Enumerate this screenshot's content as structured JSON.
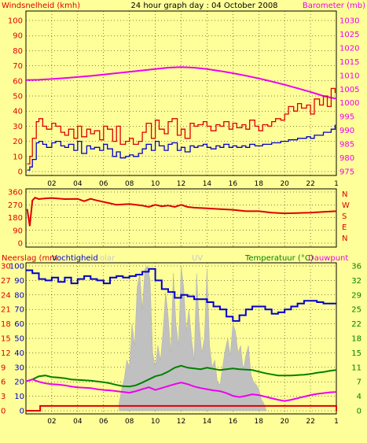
{
  "chart_data": [
    {
      "type": "line",
      "title": "24 hour graph day : 04 October 2008",
      "ylabel": "Windsnelheid (kmh)",
      "ylabel_right": "Barometer (mb)",
      "ylim": [
        0,
        100
      ],
      "ylim_right": [
        975,
        1030
      ],
      "yticks": [
        "0",
        "10",
        "20",
        "30",
        "40",
        "50",
        "60",
        "70",
        "80",
        "90",
        "100"
      ],
      "yticks_right": [
        "975",
        "980",
        "985",
        "990",
        "995",
        "1000",
        "1005",
        "1010",
        "1015",
        "1020",
        "1025",
        "1030"
      ],
      "xlim": [
        0,
        24
      ],
      "xticks": [
        "02",
        "04",
        "06",
        "08",
        "10",
        "12",
        "14",
        "16",
        "18",
        "20",
        "22",
        "1"
      ],
      "grid": true,
      "colors": {
        "gust": "#dd0000",
        "wind": "#0000cc",
        "barometer": "#ee00ee"
      },
      "series": [
        {
          "key": "gust",
          "axis": "left",
          "x": [
            0.1,
            0.3,
            0.5,
            0.8,
            1.0,
            1.3,
            1.6,
            2.0,
            2.3,
            2.7,
            3.0,
            3.3,
            3.7,
            4.0,
            4.3,
            4.7,
            5.0,
            5.3,
            5.7,
            6.0,
            6.3,
            6.7,
            7.0,
            7.3,
            7.7,
            8.0,
            8.3,
            8.7,
            9.0,
            9.3,
            9.7,
            10.0,
            10.3,
            10.7,
            11.0,
            11.3,
            11.7,
            12.0,
            12.3,
            12.7,
            13.0,
            13.3,
            13.7,
            14.0,
            14.3,
            14.7,
            15.0,
            15.3,
            15.7,
            16.0,
            16.3,
            16.7,
            17.0,
            17.3,
            17.7,
            18.0,
            18.3,
            18.7,
            19.0,
            19.3,
            19.7,
            20.0,
            20.3,
            20.7,
            21.0,
            21.3,
            21.7,
            22.0,
            22.3,
            22.7,
            23.0,
            23.3,
            23.6,
            23.9
          ],
          "y": [
            5,
            10,
            22,
            33,
            35,
            30,
            28,
            32,
            30,
            26,
            24,
            28,
            22,
            30,
            23,
            28,
            25,
            27,
            21,
            30,
            28,
            20,
            30,
            18,
            20,
            22,
            18,
            20,
            26,
            32,
            22,
            34,
            28,
            25,
            33,
            35,
            24,
            28,
            22,
            32,
            30,
            31,
            33,
            30,
            27,
            31,
            30,
            33,
            28,
            32,
            29,
            31,
            28,
            34,
            30,
            27,
            31,
            30,
            33,
            35,
            34,
            38,
            43,
            40,
            45,
            42,
            44,
            38,
            48,
            44,
            50,
            43,
            55,
            52
          ]
        },
        {
          "key": "wind",
          "axis": "left",
          "x": [
            0.1,
            0.3,
            0.5,
            0.8,
            1.0,
            1.3,
            1.6,
            2.0,
            2.3,
            2.7,
            3.0,
            3.3,
            3.7,
            4.0,
            4.3,
            4.7,
            5.0,
            5.3,
            5.7,
            6.0,
            6.3,
            6.7,
            7.0,
            7.3,
            7.7,
            8.0,
            8.3,
            8.7,
            9.0,
            9.3,
            9.7,
            10.0,
            10.3,
            10.7,
            11.0,
            11.3,
            11.7,
            12.0,
            12.3,
            12.7,
            13.0,
            13.3,
            13.7,
            14.0,
            14.3,
            14.7,
            15.0,
            15.3,
            15.7,
            16.0,
            16.3,
            16.7,
            17.0,
            17.3,
            17.7,
            18.0,
            18.3,
            18.7,
            19.0,
            19.3,
            19.7,
            20.0,
            20.3,
            20.7,
            21.0,
            21.3,
            21.7,
            22.0,
            22.3,
            22.7,
            23.0,
            23.3,
            23.6,
            23.9
          ],
          "y": [
            1,
            3,
            8,
            19,
            20,
            18,
            16,
            19,
            20,
            17,
            16,
            18,
            14,
            20,
            12,
            17,
            15,
            16,
            14,
            18,
            15,
            10,
            13,
            9,
            10,
            11,
            10,
            12,
            15,
            18,
            14,
            20,
            17,
            14,
            18,
            19,
            14,
            16,
            13,
            17,
            16,
            17,
            18,
            16,
            15,
            17,
            16,
            18,
            16,
            17,
            16,
            17,
            16,
            18,
            17,
            17,
            18,
            18,
            19,
            19,
            20,
            20,
            21,
            21,
            22,
            22,
            23,
            22,
            24,
            24,
            26,
            26,
            28,
            31
          ]
        },
        {
          "key": "barometer",
          "axis": "right",
          "x": [
            0,
            1,
            2,
            3,
            4,
            5,
            6,
            7,
            8,
            9,
            10,
            11,
            12,
            13,
            14,
            15,
            16,
            17,
            18,
            19,
            20,
            21,
            22,
            23,
            24
          ],
          "y": [
            1008.3,
            1008.4,
            1008.7,
            1009.0,
            1009.4,
            1009.8,
            1010.3,
            1010.8,
            1011.3,
            1011.8,
            1012.3,
            1012.8,
            1013.0,
            1012.8,
            1012.3,
            1011.6,
            1010.8,
            1009.9,
            1008.9,
            1007.8,
            1006.6,
            1005.3,
            1004.0,
            1002.5,
            1001.5
          ]
        }
      ]
    },
    {
      "type": "line",
      "ylim": [
        0,
        360
      ],
      "yticks": [
        "0",
        "90",
        "180",
        "270",
        "360"
      ],
      "yticks_right": [
        "N",
        "W",
        "S",
        "E",
        "N"
      ],
      "xlim": [
        0,
        24
      ],
      "grid": true,
      "colors": {
        "direction": "#dd0000"
      },
      "series": [
        {
          "key": "direction",
          "x": [
            0.1,
            0.3,
            0.5,
            0.7,
            1.0,
            1.5,
            2.0,
            3.0,
            4.0,
            4.5,
            5.0,
            5.5,
            6.0,
            6.5,
            7.0,
            8.0,
            9.0,
            9.5,
            10.0,
            10.5,
            11.0,
            11.5,
            12.0,
            12.5,
            13.0,
            14.0,
            15.0,
            16.0,
            17.0,
            18.0,
            19.0,
            20.0,
            21.0,
            22.0,
            23.0,
            24.0
          ],
          "y": [
            240,
            120,
            300,
            320,
            310,
            315,
            318,
            310,
            312,
            295,
            312,
            300,
            290,
            280,
            270,
            275,
            265,
            255,
            270,
            260,
            265,
            255,
            270,
            255,
            250,
            245,
            240,
            235,
            225,
            225,
            215,
            210,
            212,
            215,
            220,
            225
          ]
        }
      ]
    },
    {
      "type": "line",
      "ylabel": "Neerslag (mm",
      "ylabel2": "Vochtigheid",
      "ylabel_ghost": "olar",
      "uv_label": "UV",
      "ylabel_right": "Temperatuur (°C)",
      "ylabel_right2": "Dauwpunt",
      "ylim": [
        0,
        100
      ],
      "ylim_right": [
        -1,
        36
      ],
      "yticks_rain": [
        "0",
        "3",
        "6",
        "9",
        "12",
        "15",
        "18",
        "21",
        "24",
        "27",
        "30"
      ],
      "yticks_hum": [
        "0",
        "10",
        "20",
        "30",
        "40",
        "50",
        "60",
        "70",
        "80",
        "90",
        "100"
      ],
      "yticks_right": [
        "0",
        "4",
        "7",
        "11",
        "15",
        "18",
        "22",
        "25",
        "29",
        "32",
        "36"
      ],
      "xlim": [
        0,
        24
      ],
      "xticks": [
        "02",
        "04",
        "06",
        "08",
        "10",
        "12",
        "14",
        "16",
        "18",
        "20",
        "22",
        "1"
      ],
      "grid": true,
      "colors": {
        "humidity": "#0000cc",
        "temperature": "#008000",
        "dewpoint": "#ee00ee",
        "rain": "#dd0000",
        "solar": "#c0c0c0"
      },
      "series": [
        {
          "key": "humidity",
          "axis": "hum",
          "x": [
            0,
            0.5,
            1.0,
            1.5,
            2.0,
            2.5,
            3.0,
            3.5,
            4.0,
            4.5,
            5.0,
            5.5,
            6.0,
            6.5,
            7.0,
            7.5,
            8.0,
            8.5,
            9.0,
            9.5,
            10.0,
            10.5,
            11.0,
            11.5,
            12.0,
            12.5,
            13.0,
            13.5,
            14.0,
            14.5,
            15.0,
            15.5,
            16.0,
            16.5,
            17.0,
            17.5,
            18.0,
            18.5,
            19.0,
            19.5,
            20.0,
            20.5,
            21.0,
            21.5,
            22.0,
            22.5,
            23.0,
            23.5,
            24.0
          ],
          "y": [
            97,
            95,
            91,
            90,
            92,
            89,
            92,
            88,
            91,
            93,
            91,
            90,
            88,
            92,
            93,
            92,
            93,
            94,
            96,
            98,
            90,
            84,
            82,
            78,
            80,
            79,
            77,
            77,
            75,
            72,
            70,
            65,
            62,
            66,
            70,
            72,
            72,
            70,
            67,
            68,
            70,
            72,
            74,
            76,
            76,
            75,
            74,
            74,
            74
          ]
        },
        {
          "key": "temperature",
          "axis": "right",
          "x": [
            0,
            0.5,
            1.0,
            1.5,
            2.0,
            2.5,
            3.0,
            3.5,
            4.0,
            4.5,
            5.0,
            5.5,
            6.0,
            6.5,
            7.0,
            7.5,
            8.0,
            8.5,
            9.0,
            9.5,
            10.0,
            10.5,
            11.0,
            11.5,
            12.0,
            12.5,
            13.0,
            13.5,
            14.0,
            14.5,
            15.0,
            15.5,
            16.0,
            16.5,
            17.0,
            17.5,
            18.0,
            18.5,
            19.0,
            19.5,
            20.0,
            20.5,
            21.0,
            21.5,
            22.0,
            22.5,
            23.0,
            23.5,
            24.0
          ],
          "y": [
            6.5,
            7.0,
            7.8,
            8.0,
            7.6,
            7.5,
            7.3,
            7.0,
            6.9,
            6.8,
            6.7,
            6.5,
            6.3,
            6.0,
            5.6,
            5.3,
            5.2,
            5.5,
            6.2,
            7.0,
            7.8,
            8.2,
            9.0,
            10.0,
            10.5,
            10.0,
            9.8,
            9.6,
            10.0,
            9.7,
            9.4,
            9.6,
            9.8,
            9.6,
            9.5,
            9.4,
            9.0,
            8.6,
            8.3,
            8.0,
            8.0,
            8.0,
            8.1,
            8.2,
            8.4,
            8.7,
            8.9,
            9.2,
            9.4
          ]
        },
        {
          "key": "dewpoint",
          "axis": "right",
          "x": [
            0,
            0.5,
            1.0,
            1.5,
            2.0,
            2.5,
            3.0,
            3.5,
            4.0,
            4.5,
            5.0,
            5.5,
            6.0,
            6.5,
            7.0,
            7.5,
            8.0,
            8.5,
            9.0,
            9.5,
            10.0,
            10.5,
            11.0,
            11.5,
            12.0,
            12.5,
            13.0,
            13.5,
            14.0,
            14.5,
            15.0,
            15.5,
            16.0,
            16.5,
            17.0,
            17.5,
            18.0,
            18.5,
            19.0,
            19.5,
            20.0,
            20.5,
            21.0,
            21.5,
            22.0,
            22.5,
            23.0,
            23.5,
            24.0
          ],
          "y": [
            6.5,
            7.0,
            6.4,
            6.0,
            5.8,
            5.7,
            5.5,
            5.2,
            5.0,
            4.9,
            4.8,
            4.5,
            4.3,
            4.2,
            4.0,
            3.8,
            3.6,
            4.0,
            4.5,
            5.0,
            4.3,
            4.8,
            5.3,
            5.8,
            6.2,
            5.8,
            5.2,
            4.8,
            4.5,
            4.2,
            4.0,
            3.5,
            2.8,
            2.5,
            2.8,
            3.2,
            3.0,
            2.6,
            2.2,
            1.8,
            1.5,
            1.8,
            2.2,
            2.6,
            3.0,
            3.3,
            3.5,
            3.7,
            3.8
          ]
        },
        {
          "key": "rain",
          "axis": "rain",
          "x": [
            0,
            1.0,
            1.1,
            23.9,
            24.0
          ],
          "y": [
            0,
            0,
            1,
            1,
            0
          ]
        },
        {
          "key": "solar",
          "axis": "hum",
          "x": [
            7.2,
            7.4,
            7.6,
            7.8,
            8.0,
            8.2,
            8.4,
            8.6,
            8.8,
            9.0,
            9.2,
            9.4,
            9.6,
            9.8,
            10.0,
            10.2,
            10.4,
            10.6,
            10.8,
            11.0,
            11.2,
            11.4,
            11.6,
            11.8,
            12.0,
            12.2,
            12.4,
            12.6,
            12.8,
            13.0,
            13.2,
            13.4,
            13.6,
            13.8,
            14.0,
            14.2,
            14.4,
            14.6,
            14.8,
            15.0,
            15.2,
            15.4,
            15.6,
            15.8,
            16.0,
            16.2,
            16.4,
            16.6,
            16.8,
            17.0,
            17.2,
            17.4,
            17.6,
            17.8,
            18.0,
            18.2,
            18.4,
            18.6
          ],
          "y": [
            5,
            15,
            22,
            35,
            30,
            60,
            45,
            85,
            95,
            70,
            98,
            100,
            90,
            40,
            30,
            45,
            35,
            55,
            82,
            65,
            40,
            95,
            60,
            45,
            100,
            85,
            55,
            70,
            50,
            35,
            95,
            60,
            40,
            50,
            98,
            45,
            30,
            35,
            20,
            18,
            30,
            42,
            50,
            38,
            60,
            55,
            40,
            45,
            28,
            38,
            45,
            25,
            20,
            18,
            15,
            8,
            5,
            0
          ]
        }
      ]
    }
  ]
}
